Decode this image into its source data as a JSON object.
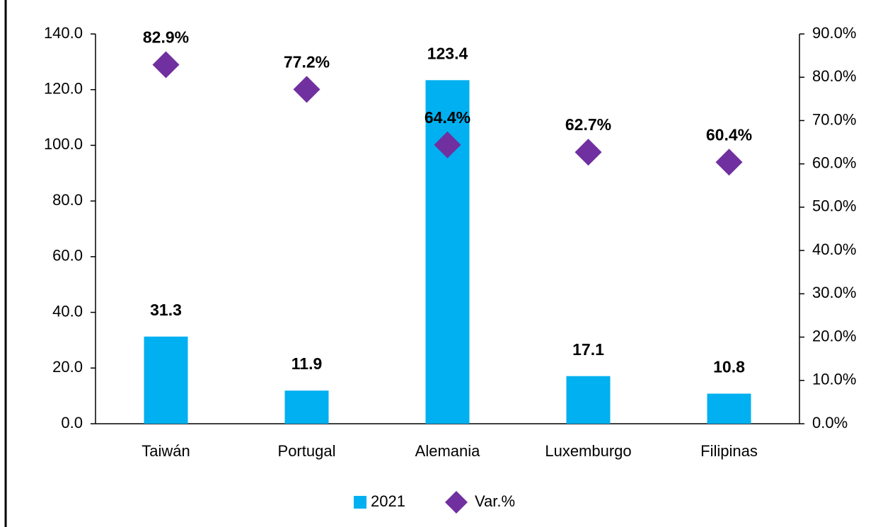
{
  "chart_data": {
    "type": "bar",
    "categories": [
      "Taiwán",
      "Portugal",
      "Alemania",
      "Luxemburgo",
      "Filipinas"
    ],
    "series": [
      {
        "name": "2021",
        "color": "#00b0f0",
        "type": "bar",
        "values": [
          31.3,
          11.9,
          123.4,
          17.1,
          10.8
        ]
      },
      {
        "name": "Var.%",
        "color": "#7030a0",
        "type": "scatter",
        "axis": "y2",
        "values": [
          82.9,
          77.2,
          64.4,
          62.7,
          60.4
        ],
        "value_labels": [
          "82.9%",
          "77.2%",
          "64.4%",
          "62.7%",
          "60.4%"
        ]
      }
    ],
    "ylim": [
      0,
      140
    ],
    "yticks": [
      {
        "value": 0,
        "label": "0.0"
      },
      {
        "value": 20,
        "label": "20.0"
      },
      {
        "value": 40,
        "label": "40.0"
      },
      {
        "value": 60,
        "label": "60.0"
      },
      {
        "value": 80,
        "label": "80.0"
      },
      {
        "value": 100,
        "label": "100.0"
      },
      {
        "value": 120,
        "label": "120.0"
      },
      {
        "value": 140,
        "label": "140.0"
      }
    ],
    "y2lim": [
      0,
      90
    ],
    "y2ticks": [
      {
        "value": 0,
        "label": "0.0%"
      },
      {
        "value": 10,
        "label": "10.0%"
      },
      {
        "value": 20,
        "label": "20.0%"
      },
      {
        "value": 30,
        "label": "30.0%"
      },
      {
        "value": 40,
        "label": "40.0%"
      },
      {
        "value": 50,
        "label": "50.0%"
      },
      {
        "value": 60,
        "label": "60.0%"
      },
      {
        "value": 70,
        "label": "70.0%"
      },
      {
        "value": 80,
        "label": "80.0%"
      },
      {
        "value": 90,
        "label": "90.0%"
      }
    ],
    "grid": false,
    "legend": "bottom"
  }
}
